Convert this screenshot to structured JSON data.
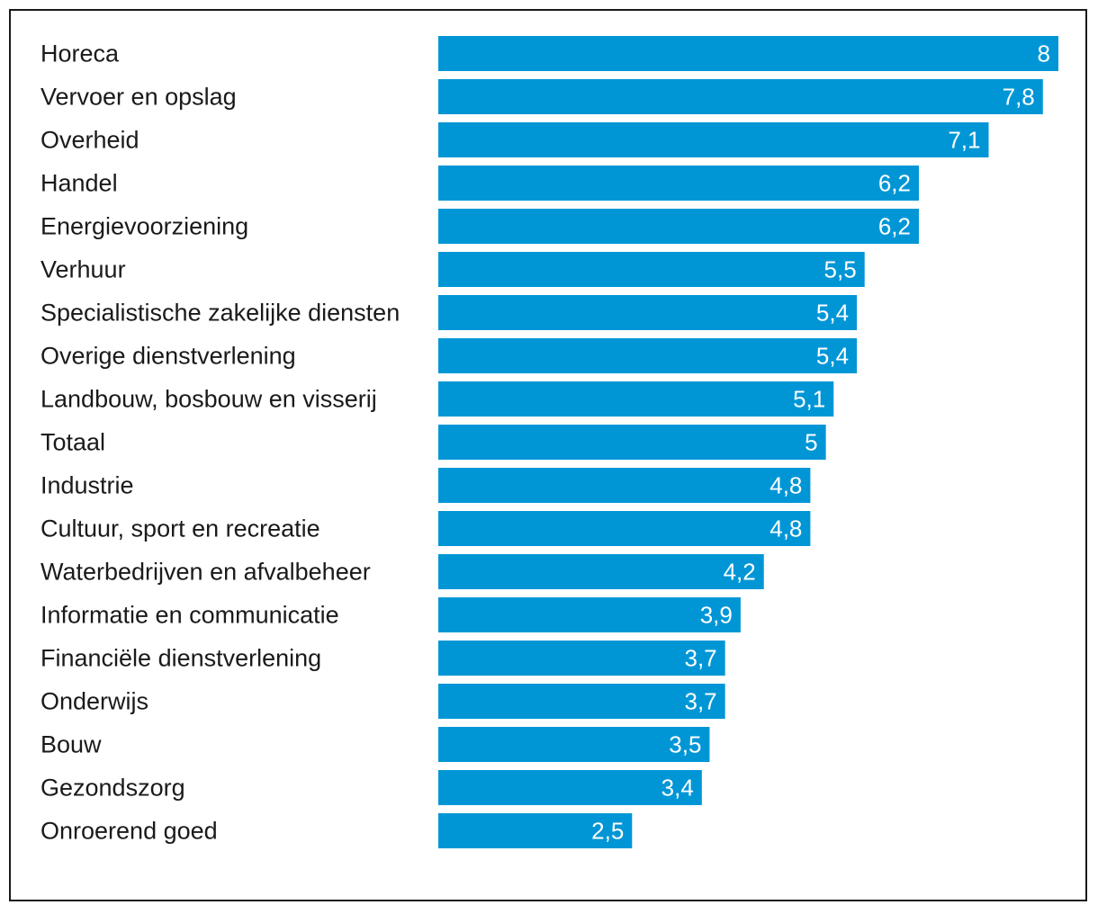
{
  "chart_data": {
    "type": "bar",
    "orientation": "horizontal",
    "categories": [
      "Horeca",
      "Vervoer en opslag",
      "Overheid",
      "Handel",
      "Energievoorziening",
      "Verhuur",
      "Specialistische zakelijke diensten",
      "Overige dienstverlening",
      "Landbouw, bosbouw en visserij",
      "Totaal",
      "Industrie",
      "Cultuur, sport en recreatie",
      "Waterbedrijven en afvalbeheer",
      "Informatie en communicatie",
      "Financiële dienstverlening",
      "Onderwijs",
      "Bouw",
      "Gezondszorg",
      "Onroerend goed"
    ],
    "values": [
      8,
      7.8,
      7.1,
      6.2,
      6.2,
      5.5,
      5.4,
      5.4,
      5.1,
      5,
      4.8,
      4.8,
      4.2,
      3.9,
      3.7,
      3.7,
      3.5,
      3.4,
      2.5
    ],
    "value_labels": [
      "8",
      "7,8",
      "7,1",
      "6,2",
      "6,2",
      "5,5",
      "5,4",
      "5,4",
      "5,1",
      "5",
      "4,8",
      "4,8",
      "4,2",
      "3,9",
      "3,7",
      "3,7",
      "3,5",
      "3,4",
      "2,5"
    ],
    "title": "",
    "xlabel": "",
    "ylabel": "",
    "xlim": [
      0,
      8
    ],
    "grid": false,
    "legend": "none",
    "colors": {
      "bar": "#0096d6",
      "value_text": "#ffffff",
      "label_text": "#1a1a1a",
      "border": "#1a1a1a"
    }
  }
}
